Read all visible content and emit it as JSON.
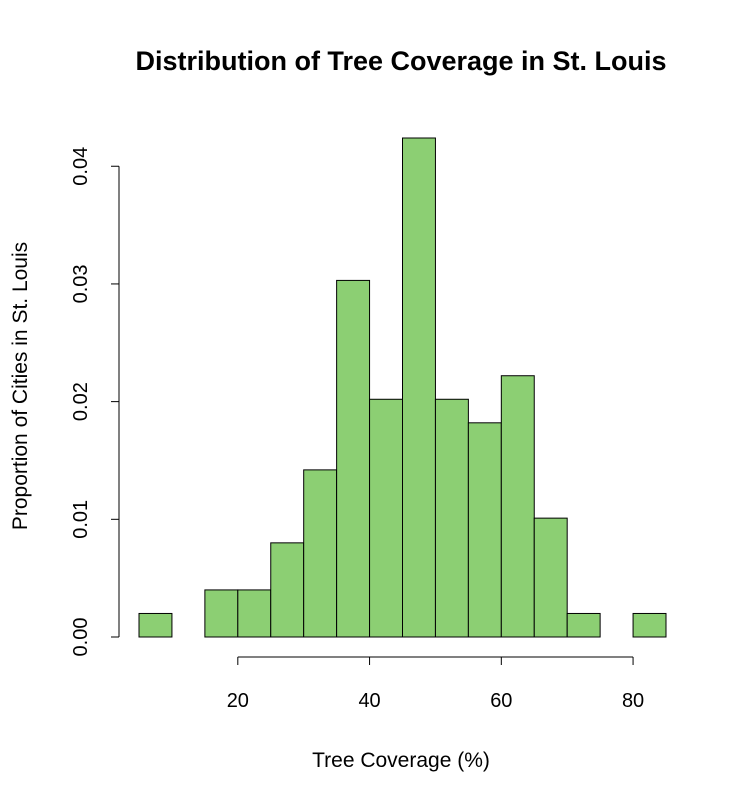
{
  "chart_data": {
    "type": "bar",
    "title": "Distribution of Tree Coverage in St. Louis",
    "xlabel": "Tree Coverage (%)",
    "ylabel": "Proportion of Cities in St. Louis",
    "bin_edges": [
      5,
      10,
      15,
      20,
      25,
      30,
      35,
      40,
      45,
      50,
      55,
      60,
      65,
      70,
      75,
      80,
      85
    ],
    "values": [
      0.002,
      0,
      0.004,
      0.004,
      0.008,
      0.0142,
      0.0303,
      0.0202,
      0.0424,
      0.0202,
      0.0182,
      0.0222,
      0.0101,
      0.002,
      0,
      0.002
    ],
    "xlim": [
      5,
      85
    ],
    "ylim": [
      0,
      0.0424
    ],
    "x_ticks": [
      20,
      40,
      60,
      80
    ],
    "x_tick_labels": [
      "20",
      "40",
      "60",
      "80"
    ],
    "y_ticks": [
      0,
      0.01,
      0.02,
      0.03,
      0.04
    ],
    "y_tick_labels": [
      "0.00",
      "0.01",
      "0.02",
      "0.03",
      "0.04"
    ],
    "bar_color": "#8ccf73",
    "grid": false,
    "legend": "none"
  }
}
